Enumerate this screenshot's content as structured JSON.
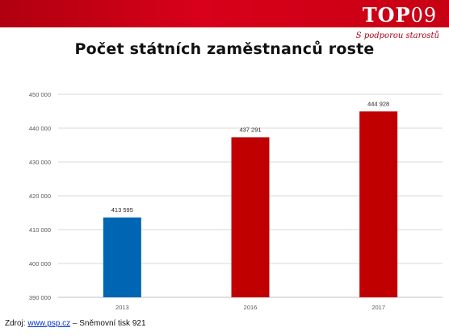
{
  "header": {
    "logo_word": "TOP",
    "logo_number": "09",
    "tagline": "S podporou starostů",
    "brand_color": "#d0001a"
  },
  "title": "Počet státních zaměstnanců roste",
  "chart_data": {
    "type": "bar",
    "title": "",
    "xlabel": "",
    "ylabel": "",
    "categories": [
      "2013",
      "2016",
      "2017"
    ],
    "values": [
      413595,
      437291,
      444928
    ],
    "value_labels": [
      "413 595",
      "437 291",
      "444 928"
    ],
    "bar_colors": [
      "#0065b3",
      "#c00000",
      "#c00000"
    ],
    "ylim": [
      390000,
      450000
    ],
    "yticks": [
      390000,
      400000,
      410000,
      420000,
      430000,
      440000,
      450000
    ],
    "ytick_labels": [
      "390 000",
      "400 000",
      "410 000",
      "420 000",
      "430 000",
      "440 000",
      "450 000"
    ],
    "grid": true,
    "legend": "none"
  },
  "source": {
    "prefix": "Zdroj: ",
    "link_text": "www.psp.cz",
    "suffix": " – Sněmovní tisk 921"
  }
}
